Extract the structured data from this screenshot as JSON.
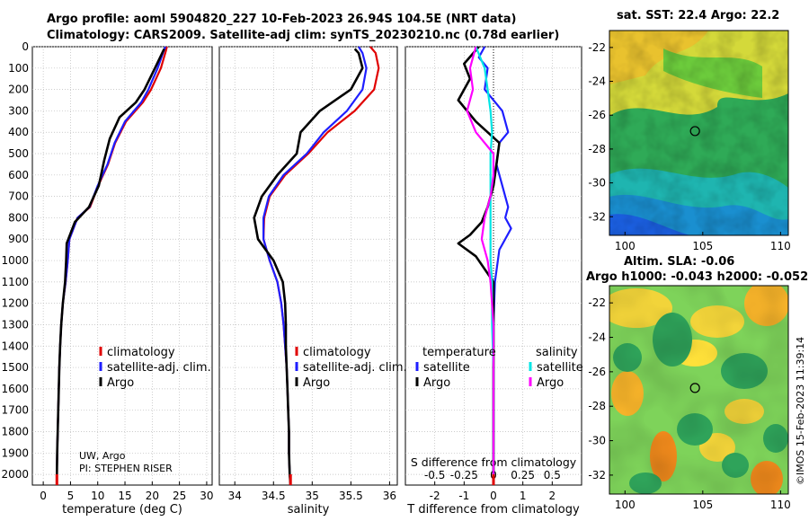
{
  "header": {
    "title_line1": "Argo profile: aoml 5904820_227 10-Feb-2023 26.94S 104.5E (NRT data)",
    "title_line2": "Climatology: CARS2009. Satellite-adj clim: synTS_20230210.nc (0.78d earlier)"
  },
  "credit": {
    "line1": "UW, Argo",
    "line2": "PI: STEPHEN RISER"
  },
  "side_label": "©IMOS 15-Feb-2023 11:39:14",
  "maps": {
    "sst_title": "sat. SST: 22.4 Argo: 22.2",
    "sla_title1": "Altim. SLA: -0.06",
    "sla_title2": "Argo h1000: -0.043 h2000: -0.052",
    "lat_ticks": [
      "-22",
      "-24",
      "-26",
      "-28",
      "-30",
      "-32"
    ],
    "lon_ticks": [
      "100",
      "105",
      "110"
    ],
    "argo_position": {
      "lon": 104.5,
      "lat": -26.94
    }
  },
  "colors": {
    "climatology": "#e00000",
    "satellite": "#1e1eff",
    "argo": "#000000",
    "sal_satellite": "#00e5e5",
    "sal_argo": "#ff00ff"
  },
  "chart_data": [
    {
      "type": "line",
      "panel": "temperature",
      "xlabel": "temperature (deg C)",
      "ylabel": "depth",
      "xlim": [
        -2,
        31
      ],
      "ylim": [
        2050,
        0
      ],
      "xticks": [
        0,
        5,
        10,
        15,
        20,
        25,
        30
      ],
      "yticks": [
        0,
        100,
        200,
        300,
        400,
        500,
        600,
        700,
        800,
        900,
        1000,
        1100,
        1200,
        1300,
        1400,
        1500,
        1600,
        1700,
        1800,
        1900,
        2000
      ],
      "legend": [
        "climatology",
        "satellite-adj. clim.",
        "Argo"
      ],
      "series": [
        {
          "name": "climatology",
          "x": [
            22.7,
            22.5,
            21.6,
            19.8,
            18.3,
            15.2,
            13.2,
            11.9,
            10.1,
            8.6,
            6.3,
            4.8,
            4.5,
            4.1,
            3.6,
            3.3,
            3.1,
            2.95,
            2.85,
            2.75,
            2.65,
            2.55,
            2.5
          ],
          "y": [
            0,
            20,
            100,
            200,
            260,
            350,
            450,
            550,
            650,
            750,
            800,
            900,
            1000,
            1100,
            1200,
            1300,
            1400,
            1500,
            1600,
            1700,
            1800,
            1900,
            2000
          ]
        },
        {
          "name": "satellite-adj. clim.",
          "x": [
            22.4,
            22.1,
            21.0,
            19.3,
            18.0,
            15.0,
            13.1,
            11.8,
            10.0,
            8.5,
            6.3,
            4.8,
            4.5,
            4.1,
            3.6,
            3.3,
            3.1,
            2.95,
            2.85,
            2.75,
            2.65,
            2.55,
            2.5
          ],
          "y": [
            0,
            20,
            100,
            200,
            260,
            350,
            450,
            550,
            650,
            750,
            800,
            900,
            1000,
            1100,
            1200,
            1300,
            1400,
            1500,
            1600,
            1700,
            1800,
            1900,
            2000
          ]
        },
        {
          "name": "Argo",
          "x": [
            22.2,
            22.0,
            20.5,
            18.6,
            17.0,
            14.0,
            12.2,
            11.2,
            10.2,
            8.4,
            5.8,
            4.3,
            4.2,
            4.0,
            3.6,
            3.3,
            3.1,
            2.95,
            2.85,
            2.75,
            2.65,
            2.55,
            2.5
          ],
          "y": [
            10,
            20,
            100,
            200,
            260,
            330,
            430,
            530,
            650,
            750,
            820,
            920,
            1000,
            1100,
            1200,
            1300,
            1400,
            1500,
            1600,
            1700,
            1800,
            1900,
            2000
          ]
        }
      ]
    },
    {
      "type": "line",
      "panel": "salinity",
      "xlabel": "salinity",
      "ylabel": "depth",
      "xlim": [
        33.8,
        36.1
      ],
      "ylim": [
        2050,
        0
      ],
      "xticks": [
        34,
        34.5,
        35,
        35.5,
        36
      ],
      "legend": [
        "climatology",
        "satellite-adj. clim.",
        "Argo"
      ],
      "series": [
        {
          "name": "climatology",
          "x": [
            35.75,
            35.82,
            35.86,
            35.8,
            35.55,
            35.2,
            34.95,
            34.65,
            34.45,
            34.38,
            34.37,
            34.45,
            34.55,
            34.6,
            34.63,
            34.65,
            34.67,
            34.68,
            34.69,
            34.7,
            34.7,
            34.71,
            34.72
          ],
          "y": [
            0,
            30,
            100,
            200,
            300,
            400,
            500,
            600,
            700,
            800,
            900,
            1000,
            1100,
            1200,
            1300,
            1400,
            1500,
            1600,
            1700,
            1800,
            1900,
            2000,
            2050
          ]
        },
        {
          "name": "satellite-adj. clim.",
          "x": [
            35.6,
            35.65,
            35.7,
            35.65,
            35.45,
            35.15,
            34.93,
            34.63,
            34.44,
            34.37,
            34.37,
            34.45,
            34.55,
            34.6,
            34.63,
            34.65,
            34.67,
            34.68,
            34.69,
            34.7,
            34.7,
            34.71,
            34.72
          ],
          "y": [
            0,
            30,
            100,
            200,
            300,
            400,
            500,
            600,
            700,
            800,
            900,
            1000,
            1100,
            1200,
            1300,
            1400,
            1500,
            1600,
            1700,
            1800,
            1900,
            2000,
            2050
          ]
        },
        {
          "name": "Argo",
          "x": [
            35.55,
            35.6,
            35.65,
            35.5,
            35.1,
            34.85,
            34.8,
            34.55,
            34.35,
            34.25,
            34.3,
            34.5,
            34.62,
            34.65,
            34.66,
            34.66,
            34.67,
            34.68,
            34.69,
            34.7,
            34.7,
            34.71,
            34.72
          ],
          "y": [
            10,
            30,
            100,
            200,
            300,
            400,
            500,
            600,
            700,
            800,
            900,
            1000,
            1100,
            1200,
            1300,
            1400,
            1500,
            1600,
            1700,
            1800,
            1900,
            2000,
            2050
          ]
        }
      ]
    },
    {
      "type": "line",
      "panel": "difference",
      "xlabel": "T difference from climatology",
      "xlabel_top": "S difference from climatology",
      "xlim": [
        -3,
        3
      ],
      "ylim": [
        2050,
        0
      ],
      "xticks": [
        -2,
        -1,
        0,
        1,
        2
      ],
      "top_ticks": [
        "-0.5",
        "-0.25",
        "0",
        "0.25",
        "0.5"
      ],
      "legend_group_temperature": "temperature",
      "legend_group_salinity": "salinity",
      "legend": [
        "satellite",
        "Argo",
        "satellite",
        "Argo"
      ],
      "series": [
        {
          "name": "temperature satellite",
          "x": [
            -0.3,
            -0.5,
            -0.2,
            -0.3,
            0.3,
            0.5,
            0.2,
            0.1,
            0.3,
            0.5,
            0.4,
            0.6,
            0.2,
            0.05,
            0.0,
            0.0,
            0.0,
            0.0,
            0.0,
            0.0,
            0.0
          ],
          "y": [
            0,
            50,
            100,
            200,
            300,
            400,
            450,
            550,
            650,
            750,
            800,
            850,
            950,
            1100,
            1300,
            1500,
            1600,
            1700,
            1800,
            1900,
            2000
          ]
        },
        {
          "name": "temperature Argo",
          "x": [
            -0.5,
            -1.0,
            -0.8,
            -1.2,
            -0.6,
            0.2,
            0.1,
            0.0,
            -0.2,
            -0.4,
            -0.8,
            -1.2,
            -0.6,
            0.0,
            0.0,
            0.0,
            0.0,
            0.0,
            0.0,
            0.0,
            0.0
          ],
          "y": [
            0,
            80,
            150,
            250,
            350,
            450,
            550,
            650,
            750,
            820,
            880,
            920,
            980,
            1100,
            1300,
            1500,
            1600,
            1700,
            1800,
            1900,
            2000
          ]
        },
        {
          "name": "salinity satellite",
          "x": [
            -0.6,
            -0.3,
            -0.2,
            -0.1,
            -0.05,
            -0.1,
            -0.1,
            -0.1,
            -0.1,
            -0.1,
            -0.1,
            -0.05,
            -0.05,
            0.0,
            0.0,
            0.0,
            0.0
          ],
          "y": [
            0,
            100,
            200,
            300,
            400,
            500,
            600,
            700,
            800,
            900,
            1000,
            1100,
            1300,
            1500,
            1700,
            1900,
            2000
          ]
        },
        {
          "name": "salinity Argo",
          "x": [
            -0.6,
            -0.8,
            -0.7,
            -0.9,
            -0.6,
            0.0,
            0.0,
            -0.1,
            -0.3,
            -0.4,
            -0.2,
            -0.1,
            0.0,
            0.0,
            0.0,
            0.0,
            0.0
          ],
          "y": [
            0,
            100,
            200,
            300,
            400,
            500,
            600,
            700,
            800,
            900,
            1000,
            1100,
            1300,
            1500,
            1700,
            1900,
            2000
          ]
        }
      ]
    }
  ]
}
